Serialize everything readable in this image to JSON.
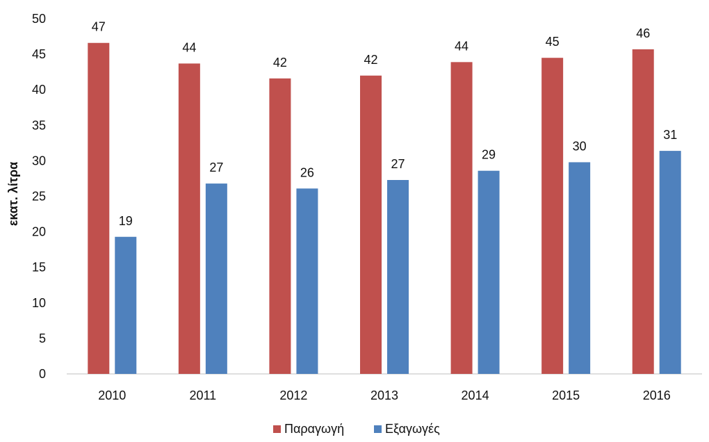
{
  "chart_data": {
    "type": "bar",
    "title": "",
    "xlabel": "",
    "ylabel": "εκατ. λίτρα",
    "categories": [
      "2010",
      "2011",
      "2012",
      "2013",
      "2014",
      "2015",
      "2016"
    ],
    "series": [
      {
        "name": "Παραγωγή",
        "color": "#C0504D",
        "values": [
          46.6,
          43.7,
          41.6,
          42.0,
          43.9,
          44.5,
          45.7
        ],
        "labels": [
          "47",
          "44",
          "42",
          "42",
          "44",
          "45",
          "46"
        ]
      },
      {
        "name": "Εξαγωγές",
        "color": "#4F81BD",
        "values": [
          19.3,
          26.8,
          26.1,
          27.3,
          28.6,
          29.8,
          31.4
        ],
        "labels": [
          "19",
          "27",
          "26",
          "27",
          "29",
          "30",
          "31"
        ]
      }
    ],
    "ylim": [
      0,
      50
    ],
    "yticks": [
      0,
      5,
      10,
      15,
      20,
      25,
      30,
      35,
      40,
      45,
      50
    ],
    "grid": false,
    "legend": "bottom-center"
  }
}
